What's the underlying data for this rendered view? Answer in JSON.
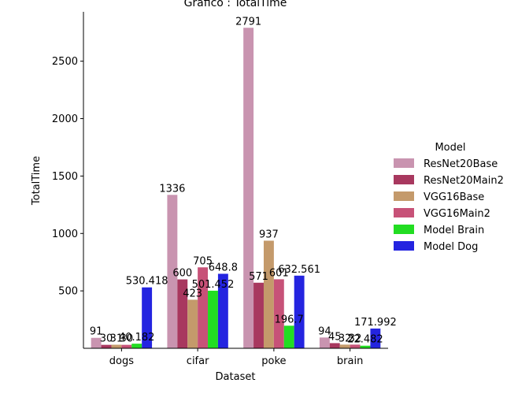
{
  "chart_data": {
    "type": "bar",
    "title": "Grafico : TotalTime",
    "xlabel": "Dataset",
    "ylabel": "TotalTime",
    "categories": [
      "dogs",
      "cifar",
      "poke",
      "brain"
    ],
    "ylim": [
      0,
      2930
    ],
    "yticks": [
      500,
      1000,
      1500,
      2000,
      2500
    ],
    "legend": {
      "title": "Model",
      "placement": "right"
    },
    "grid": false,
    "series": [
      {
        "name": "ResNet20Base",
        "color": "#c994b0",
        "values": [
          91,
          1336,
          2791,
          94
        ],
        "labels": [
          "91",
          "1336",
          "2791",
          "94"
        ]
      },
      {
        "name": "ResNet20Main2",
        "color": "#a8385f",
        "values": [
          30,
          600,
          571,
          45
        ],
        "labels": [
          "30",
          "600",
          "571",
          "45"
        ]
      },
      {
        "name": "VGG16Base",
        "color": "#c49a6b",
        "values": [
          31,
          423,
          937,
          32
        ],
        "labels": [
          "31",
          "423",
          "937",
          "32"
        ]
      },
      {
        "name": "VGG16Main2",
        "color": "#c75278",
        "values": [
          30,
          705,
          601,
          32
        ],
        "labels": [
          "30",
          "705",
          "601",
          "32"
        ]
      },
      {
        "name": "Model Brain",
        "color": "#22dd22",
        "values": [
          40.182,
          501.452,
          196.7,
          22.482
        ],
        "labels": [
          "40.182",
          "501.452",
          "196.7",
          "22.482"
        ]
      },
      {
        "name": "Model Dog",
        "color": "#2424e0",
        "values": [
          530.418,
          648.8,
          632.561,
          171.992
        ],
        "labels": [
          "530.418",
          "648.8",
          "632.561",
          "171.992"
        ]
      }
    ]
  }
}
